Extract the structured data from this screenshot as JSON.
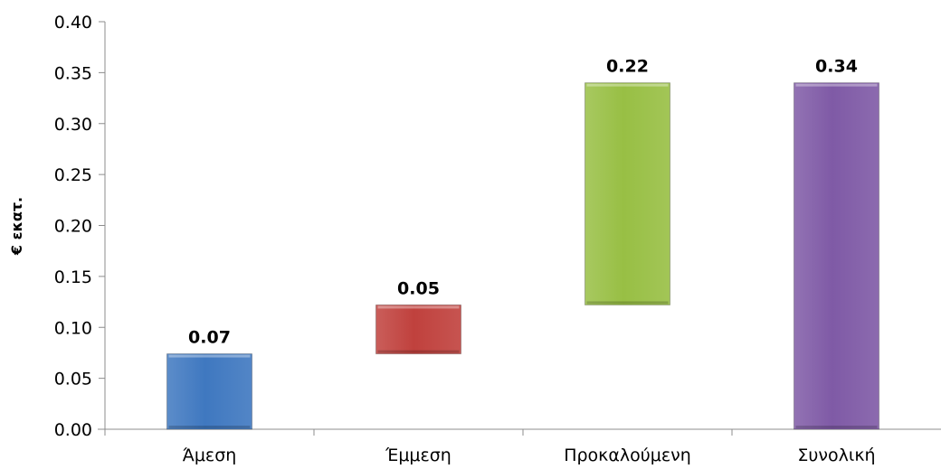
{
  "chart_data": {
    "type": "bar",
    "subtype": "waterfall",
    "title": "",
    "xlabel": "",
    "ylabel": "€ εκατ.",
    "ylim": [
      0,
      0.4
    ],
    "yticks": [
      "0.00",
      "0.05",
      "0.10",
      "0.15",
      "0.20",
      "0.25",
      "0.30",
      "0.35",
      "0.40"
    ],
    "ytick_values": [
      0,
      0.05,
      0.1,
      0.15,
      0.2,
      0.25,
      0.3,
      0.35,
      0.4
    ],
    "grid": false,
    "legend": "none",
    "categories": [
      "Άμεση",
      "Έμμεση",
      "Προκαλούμενη",
      "Συνολική"
    ],
    "bars": [
      {
        "category": "Άμεση",
        "base": 0.0,
        "top": 0.074,
        "label": "0.07",
        "color": "#3f78c0"
      },
      {
        "category": "Έμμεση",
        "base": 0.074,
        "top": 0.122,
        "label": "0.05",
        "color": "#c0413d"
      },
      {
        "category": "Προκαλούμενη",
        "base": 0.122,
        "top": 0.34,
        "label": "0.22",
        "color": "#98bf44"
      },
      {
        "category": "Συνολική",
        "base": 0.0,
        "top": 0.34,
        "label": "0.34",
        "color": "#7f5aa6"
      }
    ]
  }
}
